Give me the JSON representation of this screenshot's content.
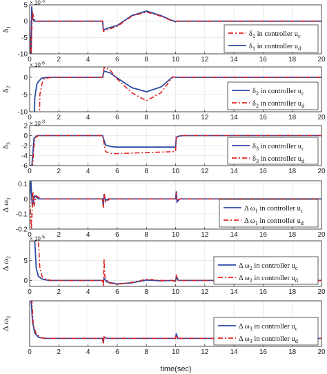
{
  "chart_data": {
    "type": "line",
    "xlabel": "time(sec)",
    "xlim": [
      0,
      20
    ],
    "xticks": [
      "0",
      "2",
      "4",
      "6",
      "8",
      "10",
      "12",
      "14",
      "16",
      "18",
      "20"
    ],
    "colors": {
      "uc": "#2c4aa6",
      "ud": "#e02020"
    },
    "panels": [
      {
        "ylabel": "δ",
        "ysub": "1",
        "ylabel_prefix": "",
        "exponent": "× 10",
        "exponent_power": "-3",
        "ylim": [
          -10,
          5
        ],
        "yticks": [
          {
            "v": -10,
            "t": "-10"
          },
          {
            "v": -5,
            "t": "-5"
          },
          {
            "v": 0,
            "t": "0"
          },
          {
            "v": 5,
            "t": "5"
          }
        ],
        "legend": {
          "order": [
            "ud",
            "uc"
          ],
          "entries": {
            "ud": {
              "pre": "δ",
              "sub": "1",
              "text": " in controller u",
              "usub": "c"
            },
            "uc": {
              "pre": "δ",
              "sub": "1",
              "text": " in controller u",
              "usub": "d"
            }
          }
        },
        "series": {
          "ud": [
            [
              0,
              0
            ],
            [
              0.04,
              -8
            ],
            [
              0.1,
              -11
            ],
            [
              0.18,
              3
            ],
            [
              0.3,
              0.6
            ],
            [
              0.5,
              0
            ],
            [
              5,
              0
            ],
            [
              5.05,
              -3.1
            ],
            [
              5.3,
              -2.6
            ],
            [
              6,
              -1.6
            ],
            [
              7,
              1.5
            ],
            [
              8,
              2.8
            ],
            [
              9,
              1.5
            ],
            [
              9.7,
              0.2
            ],
            [
              9.95,
              -0.1
            ],
            [
              10,
              -0.2
            ],
            [
              10.05,
              0
            ],
            [
              20,
              0
            ]
          ],
          "uc": [
            [
              0,
              0
            ],
            [
              0.04,
              -10
            ],
            [
              0.1,
              -11
            ],
            [
              0.14,
              4.5
            ],
            [
              0.2,
              1
            ],
            [
              0.3,
              0
            ],
            [
              5,
              0
            ],
            [
              5.05,
              -2.7
            ],
            [
              5.3,
              -2.2
            ],
            [
              6,
              -1.3
            ],
            [
              7,
              1.7
            ],
            [
              8,
              3.1
            ],
            [
              9,
              1.7
            ],
            [
              9.7,
              0.3
            ],
            [
              9.95,
              0
            ],
            [
              10,
              -0.2
            ],
            [
              10.05,
              0
            ],
            [
              20,
              0
            ]
          ]
        }
      },
      {
        "ylabel": "δ",
        "ysub": "2",
        "ylabel_prefix": "",
        "exponent": "× 10",
        "exponent_power": "-6",
        "ylim": [
          -10,
          3
        ],
        "yticks": [
          {
            "v": -10,
            "t": "-10"
          },
          {
            "v": -5,
            "t": "-5"
          },
          {
            "v": 0,
            "t": "0"
          }
        ],
        "legend": {
          "order": [
            "uc",
            "ud"
          ],
          "entries": {
            "uc": {
              "pre": "δ",
              "sub": "2",
              "text": " in controller u",
              "usub": "c"
            },
            "ud": {
              "pre": "δ",
              "sub": "2",
              "text": " in controller u",
              "usub": "d"
            }
          }
        },
        "series": {
          "uc": [
            [
              0,
              -30
            ],
            [
              0.25,
              -30
            ],
            [
              0.35,
              -6
            ],
            [
              0.5,
              -1.8
            ],
            [
              0.8,
              -0.3
            ],
            [
              1.2,
              0
            ],
            [
              5,
              0
            ],
            [
              5.1,
              1.8
            ],
            [
              5.5,
              1.3
            ],
            [
              6,
              -0.2
            ],
            [
              7,
              -3
            ],
            [
              8,
              -4.2
            ],
            [
              9,
              -2.8
            ],
            [
              9.8,
              0.1
            ],
            [
              10,
              0
            ],
            [
              20,
              0
            ]
          ],
          "ud": [
            [
              0,
              -30
            ],
            [
              0.6,
              -30
            ],
            [
              0.7,
              -5
            ],
            [
              0.85,
              -1.8
            ],
            [
              1,
              -0.4
            ],
            [
              1.5,
              0
            ],
            [
              5,
              0
            ],
            [
              5.1,
              2.8
            ],
            [
              5.5,
              2.2
            ],
            [
              6,
              -0.5
            ],
            [
              7,
              -4.5
            ],
            [
              8,
              -6.8
            ],
            [
              9,
              -4.5
            ],
            [
              9.8,
              0.1
            ],
            [
              10,
              0
            ],
            [
              20,
              0
            ]
          ]
        }
      },
      {
        "ylabel": "δ",
        "ysub": "3",
        "ylabel_prefix": "",
        "exponent": "× 10",
        "exponent_power": "-3",
        "ylim": [
          -6,
          2
        ],
        "yticks": [
          {
            "v": -6,
            "t": "-6"
          },
          {
            "v": -4,
            "t": "-4"
          },
          {
            "v": -2,
            "t": "-2"
          },
          {
            "v": 0,
            "t": "0"
          },
          {
            "v": 2,
            "t": "2"
          }
        ],
        "legend": {
          "order": [
            "uc",
            "ud"
          ],
          "entries": {
            "uc": {
              "pre": "δ",
              "sub": "3",
              "text": " in controller u",
              "usub": "c"
            },
            "ud": {
              "pre": "δ",
              "sub": "3",
              "text": " in controller u",
              "usub": "d"
            }
          }
        },
        "series": {
          "uc": [
            [
              0,
              -6
            ],
            [
              0.15,
              -6
            ],
            [
              0.3,
              -0.5
            ],
            [
              0.5,
              0
            ],
            [
              5,
              0
            ],
            [
              5.2,
              -1.9
            ],
            [
              5.6,
              -2.2
            ],
            [
              6,
              -2.3
            ],
            [
              10,
              -2.3
            ],
            [
              10.05,
              -0.3
            ],
            [
              10.3,
              -0.05
            ],
            [
              10.6,
              0
            ],
            [
              20,
              0
            ]
          ],
          "ud": [
            [
              0,
              -6
            ],
            [
              0.2,
              -6
            ],
            [
              0.35,
              -0.5
            ],
            [
              0.6,
              0
            ],
            [
              5,
              0
            ],
            [
              5.2,
              -3.2
            ],
            [
              5.6,
              -3.6
            ],
            [
              6,
              -3.6
            ],
            [
              10,
              -3.2
            ],
            [
              10.05,
              -0.4
            ],
            [
              10.3,
              -0.05
            ],
            [
              10.6,
              0
            ],
            [
              20,
              0
            ]
          ]
        }
      },
      {
        "ylabel": "ω",
        "ysub": "1",
        "ylabel_prefix": "Δ ",
        "exponent": "",
        "exponent_power": "",
        "ylim": [
          -0.2,
          0.12
        ],
        "yticks": [
          {
            "v": -0.2,
            "t": "-0.2"
          },
          {
            "v": -0.1,
            "t": "-0.1"
          },
          {
            "v": 0,
            "t": "0"
          },
          {
            "v": 0.1,
            "t": "0.1"
          }
        ],
        "legend": {
          "order": [
            "uc",
            "ud"
          ],
          "entries": {
            "uc": {
              "pre": "Δ ω",
              "sub": "1",
              "text": " in controller u",
              "usub": "c"
            },
            "ud": {
              "pre": "Δ ω",
              "sub": "1",
              "text": " in controller u",
              "usub": "d"
            }
          }
        },
        "series": {
          "uc": [
            [
              0,
              0
            ],
            [
              0.08,
              0.12
            ],
            [
              0.18,
              -0.05
            ],
            [
              0.35,
              0.02
            ],
            [
              0.6,
              0
            ],
            [
              5,
              0
            ],
            [
              5.05,
              -0.05
            ],
            [
              5.1,
              0.03
            ],
            [
              5.2,
              -0.01
            ],
            [
              5.4,
              0
            ],
            [
              10,
              0
            ],
            [
              10.05,
              0.05
            ],
            [
              10.1,
              -0.02
            ],
            [
              10.3,
              0
            ],
            [
              20,
              0
            ]
          ],
          "ud": [
            [
              0,
              0
            ],
            [
              0.12,
              -0.2
            ],
            [
              0.22,
              0.05
            ],
            [
              0.3,
              -0.05
            ],
            [
              0.45,
              0.02
            ],
            [
              0.8,
              0
            ],
            [
              5,
              0
            ],
            [
              5.05,
              -0.06
            ],
            [
              5.1,
              0.04
            ],
            [
              5.2,
              -0.02
            ],
            [
              5.5,
              0
            ],
            [
              10,
              0
            ],
            [
              10.05,
              0.04
            ],
            [
              10.1,
              -0.01
            ],
            [
              10.3,
              0
            ],
            [
              20,
              0
            ]
          ]
        }
      },
      {
        "ylabel": "ω",
        "ysub": "2",
        "ylabel_prefix": "Δ ",
        "exponent": "× 10",
        "exponent_power": "-5",
        "ylim": [
          -1.5,
          10
        ],
        "yticks": [
          {
            "v": 0,
            "t": "0"
          },
          {
            "v": 5,
            "t": "5"
          }
        ],
        "legend": {
          "order": [
            "uc",
            "ud"
          ],
          "entries": {
            "uc": {
              "pre": "Δ ω",
              "sub": "2",
              "text": " in controller u",
              "usub": "c"
            },
            "ud": {
              "pre": "Δ ω",
              "sub": "2",
              "text": " in controller u",
              "usub": "d"
            }
          }
        },
        "series": {
          "uc": [
            [
              0,
              10
            ],
            [
              0.35,
              10
            ],
            [
              0.45,
              3
            ],
            [
              0.6,
              1
            ],
            [
              0.9,
              0.3
            ],
            [
              1.3,
              0
            ],
            [
              5,
              0
            ],
            [
              5.05,
              -0.5
            ],
            [
              5.1,
              0.5
            ],
            [
              5.3,
              -0.4
            ],
            [
              6,
              -0.9
            ],
            [
              7,
              -0.6
            ],
            [
              8,
              0.1
            ],
            [
              9,
              -0.1
            ],
            [
              9.8,
              0
            ],
            [
              10,
              -0.2
            ],
            [
              10.05,
              0.8
            ],
            [
              10.2,
              0
            ],
            [
              20,
              0
            ]
          ],
          "ud": [
            [
              0,
              10
            ],
            [
              0.6,
              10
            ],
            [
              0.7,
              3
            ],
            [
              0.85,
              1
            ],
            [
              1.1,
              0.3
            ],
            [
              1.5,
              0
            ],
            [
              5,
              0
            ],
            [
              5.05,
              -1.5
            ],
            [
              5.1,
              5.5
            ],
            [
              5.15,
              1
            ],
            [
              5.4,
              -0.6
            ],
            [
              6,
              -1
            ],
            [
              7,
              -0.5
            ],
            [
              8,
              0.3
            ],
            [
              9,
              0
            ],
            [
              9.8,
              0
            ],
            [
              10,
              -0.4
            ],
            [
              10.05,
              1.2
            ],
            [
              10.2,
              0
            ],
            [
              20,
              0
            ]
          ]
        }
      },
      {
        "ylabel": "ω",
        "ysub": "3",
        "ylabel_prefix": "Δ ",
        "exponent": "",
        "exponent_power": "",
        "ylim": [
          -0.015,
          0.07
        ],
        "yticks": [],
        "legend": {
          "order": [
            "uc",
            "ud"
          ],
          "entries": {
            "uc": {
              "pre": "Δ ω",
              "sub": "3",
              "text": " in controller u",
              "usub": "c"
            },
            "ud": {
              "pre": "Δ ω",
              "sub": "3",
              "text": " in controller u",
              "usub": "d"
            }
          }
        },
        "series": {
          "uc": [
            [
              0,
              0.07
            ],
            [
              0.1,
              0.07
            ],
            [
              0.2,
              0.03
            ],
            [
              0.35,
              0.01
            ],
            [
              0.6,
              0.002
            ],
            [
              1,
              0
            ],
            [
              5,
              0
            ],
            [
              5.05,
              -0.008
            ],
            [
              5.1,
              0.002
            ],
            [
              5.3,
              0
            ],
            [
              10,
              0
            ],
            [
              10.05,
              0.009
            ],
            [
              10.15,
              0
            ],
            [
              20,
              0
            ]
          ],
          "ud": [
            [
              0,
              0.07
            ],
            [
              0.15,
              0.07
            ],
            [
              0.25,
              0.025
            ],
            [
              0.45,
              0.008
            ],
            [
              0.8,
              0.001
            ],
            [
              1.2,
              0
            ],
            [
              5,
              0
            ],
            [
              5.05,
              -0.011
            ],
            [
              5.1,
              0.003
            ],
            [
              5.3,
              0
            ],
            [
              10,
              0
            ],
            [
              10.05,
              0.006
            ],
            [
              10.15,
              0
            ],
            [
              20,
              0
            ]
          ]
        }
      }
    ]
  }
}
